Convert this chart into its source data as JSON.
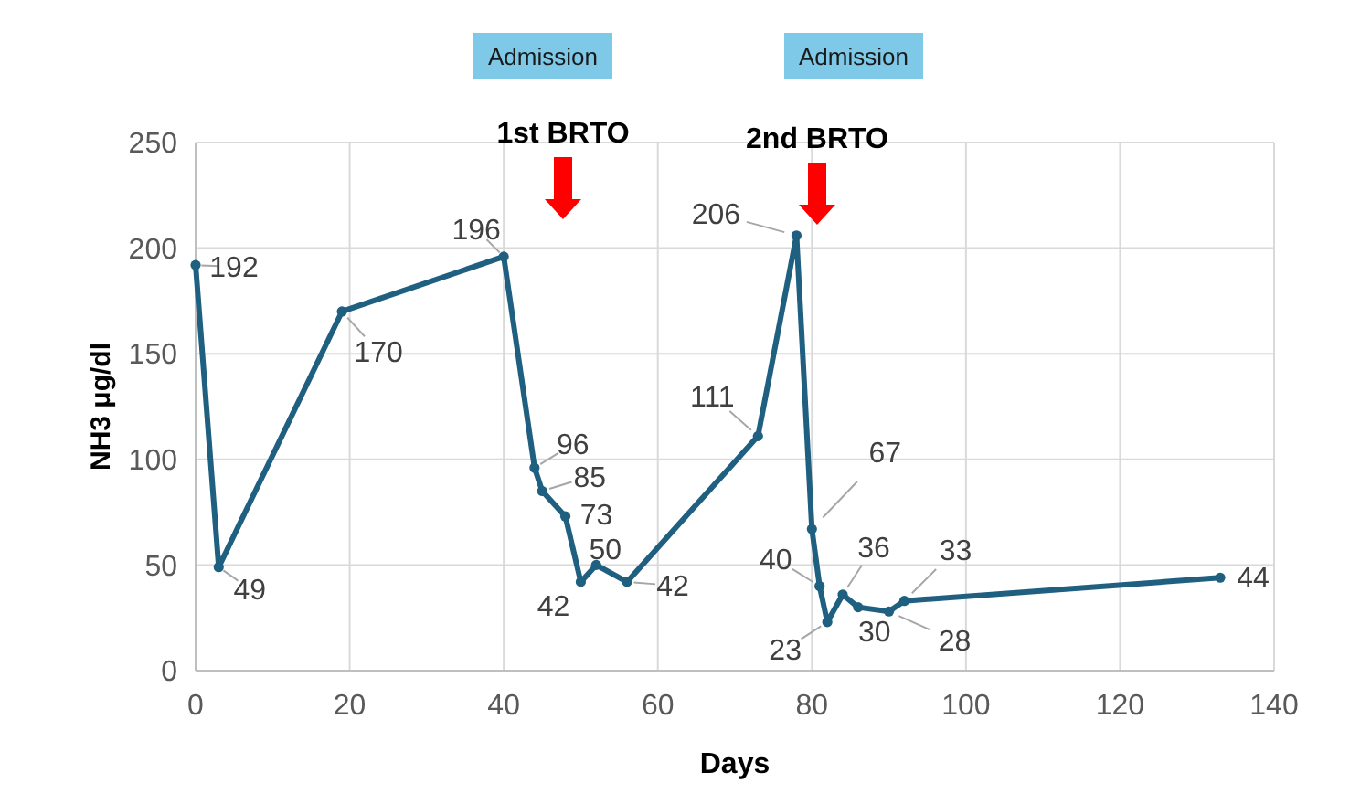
{
  "chart_data": {
    "type": "line",
    "xlabel": "Days",
    "ylabel": "NH3 μg/dl",
    "x": [
      0,
      3,
      19,
      40,
      44,
      45,
      48,
      50,
      52,
      56,
      73,
      78,
      80,
      81,
      82,
      84,
      86,
      90,
      92,
      133
    ],
    "series": [
      {
        "color": "#1f5f80",
        "values": [
          192,
          49,
          170,
          196,
          96,
          85,
          73,
          42,
          50,
          42,
          111,
          206,
          67,
          40,
          23,
          36,
          30,
          28,
          33,
          44
        ]
      }
    ],
    "xlim": [
      0,
      140
    ],
    "xticks": [
      0,
      20,
      40,
      60,
      80,
      100,
      120,
      140
    ],
    "ylim": [
      0,
      250
    ],
    "yticks": [
      0,
      50,
      100,
      150,
      200,
      250
    ],
    "grid": true,
    "marker": "circle",
    "line_style": "solid",
    "data_labels": true,
    "annotations": [
      "Admission",
      "Admission",
      "1st BRTO",
      "2nd BRTO"
    ]
  }
}
